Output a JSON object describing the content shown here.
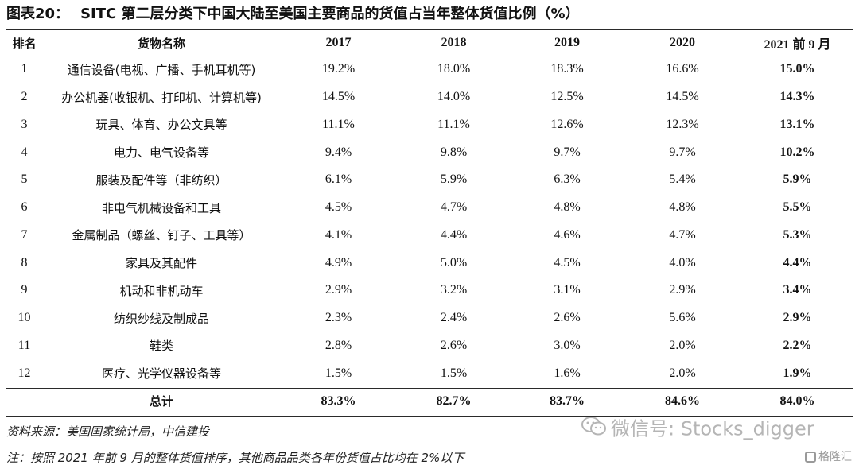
{
  "title": {
    "label": "图表20：",
    "text": "SITC 第二层分类下中国大陆至美国主要商品的货值占当年整体货值比例（%）"
  },
  "table": {
    "headers": [
      "排名",
      "货物名称",
      "2017",
      "2018",
      "2019",
      "2020",
      "2021 前 9 月"
    ],
    "rows": [
      {
        "rank": "1",
        "name": "通信设备(电视、广播、手机耳机等)",
        "values": [
          "19.2%",
          "18.0%",
          "18.3%",
          "16.6%",
          "15.0%"
        ]
      },
      {
        "rank": "2",
        "name": "办公机器(收银机、打印机、计算机等)",
        "values": [
          "14.5%",
          "14.0%",
          "12.5%",
          "14.5%",
          "14.3%"
        ]
      },
      {
        "rank": "3",
        "name": "玩具、体育、办公文具等",
        "values": [
          "11.1%",
          "11.1%",
          "12.6%",
          "12.3%",
          "13.1%"
        ]
      },
      {
        "rank": "4",
        "name": "电力、电气设备等",
        "values": [
          "9.4%",
          "9.8%",
          "9.7%",
          "9.7%",
          "10.2%"
        ]
      },
      {
        "rank": "5",
        "name": "服装及配件等（非纺织）",
        "values": [
          "6.1%",
          "5.9%",
          "6.3%",
          "5.4%",
          "5.9%"
        ]
      },
      {
        "rank": "6",
        "name": "非电气机械设备和工具",
        "values": [
          "4.5%",
          "4.7%",
          "4.8%",
          "4.8%",
          "5.5%"
        ]
      },
      {
        "rank": "7",
        "name": "金属制品（螺丝、钉子、工具等）",
        "values": [
          "4.1%",
          "4.4%",
          "4.6%",
          "4.7%",
          "5.3%"
        ]
      },
      {
        "rank": "8",
        "name": "家具及其配件",
        "values": [
          "4.9%",
          "5.0%",
          "4.5%",
          "4.0%",
          "4.4%"
        ]
      },
      {
        "rank": "9",
        "name": "机动和非机动车",
        "values": [
          "2.9%",
          "3.2%",
          "3.1%",
          "2.9%",
          "3.4%"
        ]
      },
      {
        "rank": "10",
        "name": "纺织纱线及制成品",
        "values": [
          "2.3%",
          "2.4%",
          "2.6%",
          "5.6%",
          "2.9%"
        ]
      },
      {
        "rank": "11",
        "name": "鞋类",
        "values": [
          "2.8%",
          "2.6%",
          "3.0%",
          "2.0%",
          "2.2%"
        ]
      },
      {
        "rank": "12",
        "name": "医疗、光学仪器设备等",
        "values": [
          "1.5%",
          "1.5%",
          "1.6%",
          "2.0%",
          "1.9%"
        ]
      }
    ],
    "total": {
      "label": "总计",
      "values": [
        "83.3%",
        "82.7%",
        "83.7%",
        "84.6%",
        "84.0%"
      ]
    }
  },
  "source_note": "资料来源：美国国家统计局，中信建投",
  "footnote": "注：按照 2021 年前 9 月的整体货值排序，其他商品品类各年份货值占比均在 2%以下",
  "watermark": {
    "text": "微信号: Stocks_digger",
    "icon": "wechat-icon"
  },
  "brand": {
    "text": "格隆汇",
    "icon": "gelonghui-logo-icon"
  }
}
